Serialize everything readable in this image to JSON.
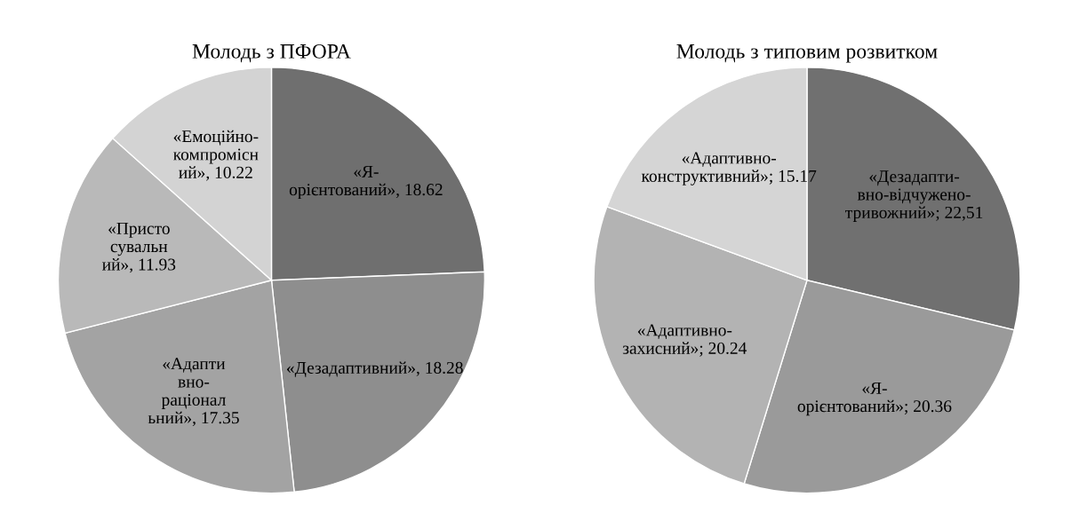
{
  "chart_data": [
    {
      "type": "pie",
      "title": "Молодь з ПФОРА",
      "categories": [
        "«Я-\nорієнтований»",
        "«Дезадаптивний»",
        "«Адапти\nвно-\nраціонал\nьний»",
        "«Присто\nсувальн\nий»",
        "«Емоційно-\nкомпромісн\nий»"
      ],
      "values": [
        18.62,
        18.28,
        17.35,
        11.93,
        10.22
      ],
      "value_labels": [
        "18.62",
        "18.28",
        "17.35",
        "11.93",
        "10.22"
      ],
      "colors": [
        "#6f6f6f",
        "#8e8e8e",
        "#a3a3a3",
        "#b9b9b9",
        "#d3d3d3"
      ]
    },
    {
      "type": "pie",
      "title": "Молодь з типовим розвитком",
      "categories": [
        "«Дезадапти-\nвно-відчужено-\nтривожний»",
        "«Я-\nорієнтований»",
        "«Адаптивно-\nзахисний»",
        "«Адаптивно-\nконструктивний»"
      ],
      "values": [
        22.51,
        20.36,
        20.24,
        15.17
      ],
      "value_labels": [
        "22,51",
        "20.36",
        "20.24",
        "15.17"
      ],
      "colors": [
        "#707070",
        "#9a9a9a",
        "#b3b3b3",
        "#d5d5d5"
      ]
    }
  ]
}
